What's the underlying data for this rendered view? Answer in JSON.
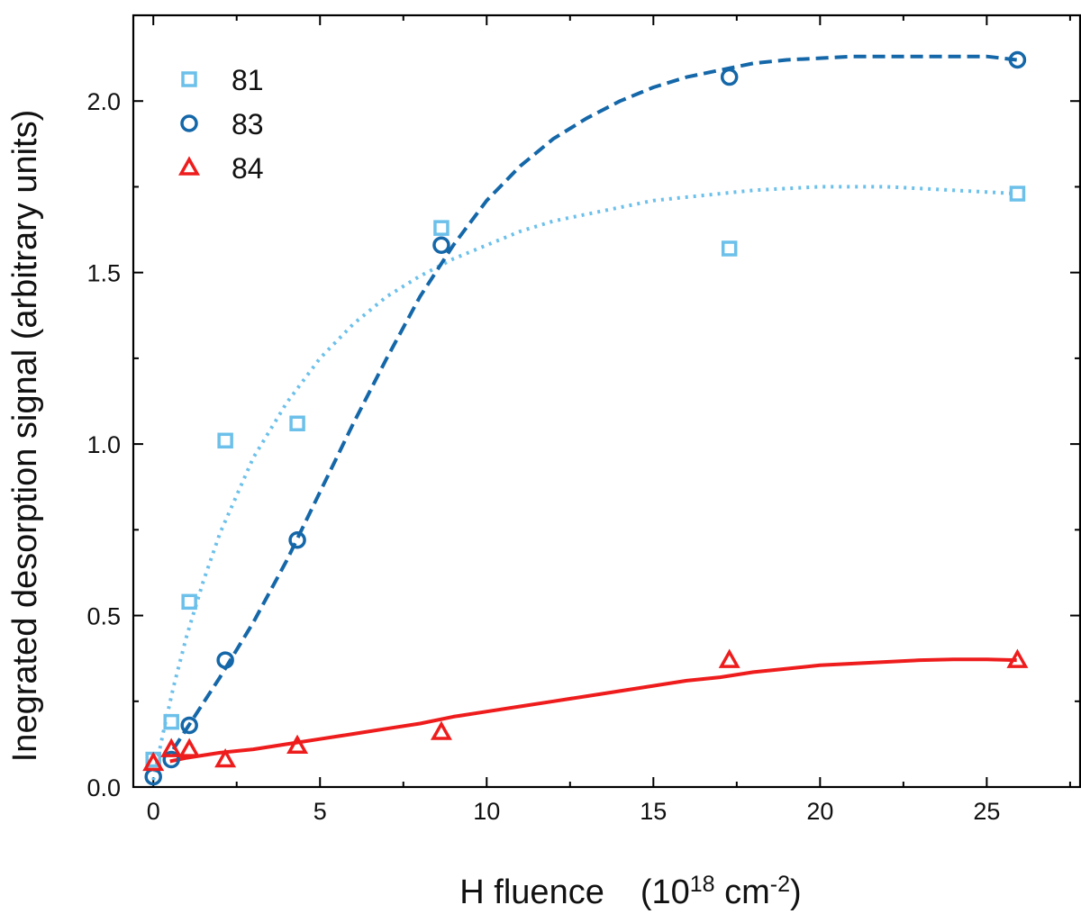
{
  "chart_data": {
    "type": "scatter",
    "title": "",
    "xlabel": {
      "main": "H fluence",
      "unit_prefix": "(10",
      "unit_exp": "18",
      "unit_mid": " cm",
      "unit_exp2": "-2",
      "unit_suffix": ")"
    },
    "ylabel": "Inegrated desorption signal (arbitrary units)",
    "xlim": [
      -0.6,
      27.8
    ],
    "ylim": [
      0,
      2.25
    ],
    "xticks": [
      0,
      5,
      10,
      15,
      20,
      25
    ],
    "xtick_labels": [
      "0",
      "5",
      "10",
      "15",
      "20",
      "25"
    ],
    "yticks": [
      0.0,
      0.5,
      1.0,
      1.5,
      2.0
    ],
    "ytick_labels": [
      "0.0",
      "0.5",
      "1.0",
      "1.5",
      "2.0"
    ],
    "grid": false,
    "legend_position": "top-left",
    "series": [
      {
        "name": "81",
        "marker": "square",
        "color": "#6cc0ea",
        "fit_style": "dotted",
        "x": [
          0,
          0.54,
          1.08,
          2.16,
          4.32,
          8.64,
          17.28,
          25.92
        ],
        "y": [
          0.08,
          0.19,
          0.54,
          1.01,
          1.06,
          1.63,
          1.57,
          1.73
        ],
        "fit_x": [
          0,
          0.3,
          0.6,
          1,
          1.5,
          2,
          3,
          4,
          5,
          6,
          7,
          8,
          9,
          10,
          11,
          12,
          13,
          14,
          15,
          16,
          17,
          18,
          19,
          20,
          21,
          22,
          23,
          24,
          25,
          25.9
        ],
        "fit_y": [
          0.02,
          0.16,
          0.29,
          0.44,
          0.6,
          0.74,
          0.96,
          1.12,
          1.25,
          1.35,
          1.43,
          1.49,
          1.54,
          1.58,
          1.62,
          1.65,
          1.67,
          1.69,
          1.71,
          1.72,
          1.73,
          1.74,
          1.745,
          1.75,
          1.75,
          1.75,
          1.745,
          1.74,
          1.735,
          1.73
        ]
      },
      {
        "name": "83",
        "marker": "circle",
        "color": "#1467a8",
        "fit_style": "dashed",
        "x": [
          0,
          0.54,
          1.08,
          2.16,
          4.32,
          8.64,
          17.28,
          25.92
        ],
        "y": [
          0.03,
          0.08,
          0.18,
          0.37,
          0.72,
          1.58,
          2.07,
          2.12
        ],
        "fit_x": [
          0.6,
          1,
          2,
          3,
          4,
          5,
          6,
          7,
          8,
          9,
          10,
          11,
          12,
          13,
          14,
          15,
          16,
          17,
          18,
          19,
          20,
          21,
          22,
          23,
          24,
          25,
          25.9
        ],
        "fit_y": [
          0.11,
          0.17,
          0.32,
          0.48,
          0.66,
          0.86,
          1.06,
          1.25,
          1.43,
          1.58,
          1.71,
          1.81,
          1.89,
          1.95,
          2.0,
          2.04,
          2.07,
          2.09,
          2.11,
          2.12,
          2.125,
          2.13,
          2.13,
          2.13,
          2.13,
          2.13,
          2.12
        ]
      },
      {
        "name": "84",
        "marker": "triangle",
        "color": "#ee1c1c",
        "fit_style": "solid",
        "x": [
          0,
          0.54,
          1.08,
          2.16,
          4.32,
          8.64,
          17.28,
          25.92
        ],
        "y": [
          0.07,
          0.11,
          0.11,
          0.08,
          0.12,
          0.16,
          0.37,
          0.37
        ],
        "fit_x": [
          0.5,
          1,
          2,
          3,
          4,
          5,
          6,
          7,
          8,
          9,
          10,
          11,
          12,
          13,
          14,
          15,
          16,
          17,
          18,
          19,
          20,
          21,
          22,
          23,
          24,
          25,
          25.9
        ],
        "fit_y": [
          0.075,
          0.085,
          0.1,
          0.11,
          0.125,
          0.14,
          0.155,
          0.17,
          0.185,
          0.205,
          0.22,
          0.235,
          0.25,
          0.265,
          0.28,
          0.295,
          0.31,
          0.32,
          0.335,
          0.345,
          0.355,
          0.36,
          0.365,
          0.37,
          0.372,
          0.372,
          0.37
        ]
      }
    ]
  }
}
